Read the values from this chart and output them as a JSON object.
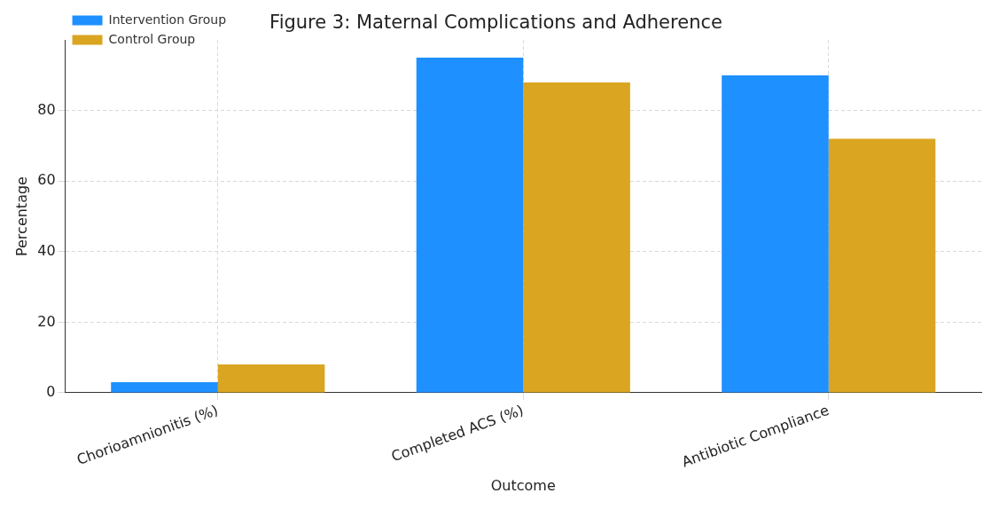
{
  "chart_data": {
    "type": "bar",
    "title": "Figure 3: Maternal Complications and Adherence",
    "xlabel": "Outcome",
    "ylabel": "Percentage",
    "categories": [
      "Chorioamnionitis (%)",
      "Completed ACS (%)",
      "Antibiotic Compliance"
    ],
    "series": [
      {
        "name": "Intervention Group",
        "color": "#1e90ff",
        "values": [
          3,
          95,
          90
        ]
      },
      {
        "name": "Control Group",
        "color": "#daa520",
        "values": [
          8,
          88,
          72
        ]
      }
    ],
    "ylim": [
      0,
      100
    ],
    "yticks": [
      0,
      20,
      40,
      60,
      80
    ],
    "grid": true,
    "legend": "top left"
  }
}
